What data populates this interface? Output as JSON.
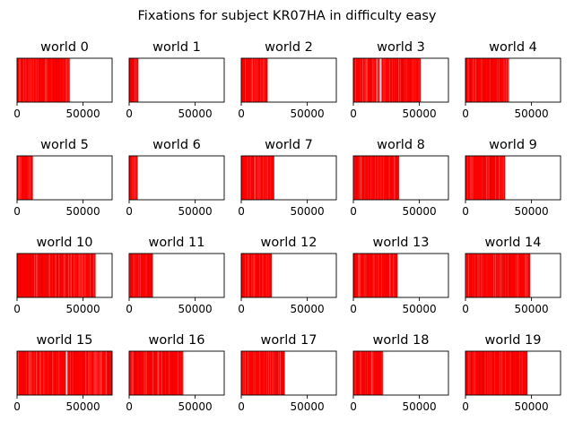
{
  "chart_data": {
    "type": "event-raster",
    "suptitle": "Fixations for subject KR07HA in difficulty easy",
    "xlim": [
      0,
      72000
    ],
    "xticks": [
      0,
      50000
    ],
    "xtick_labels": [
      "0",
      "50000"
    ],
    "yticks": [],
    "bar_color": "#ff0000",
    "grid": false,
    "panels": [
      {
        "title": "world 0",
        "extent": [
          0,
          40000
        ],
        "gaps": []
      },
      {
        "title": "world 1",
        "extent": [
          0,
          7000
        ],
        "gaps": []
      },
      {
        "title": "world 2",
        "extent": [
          0,
          20000
        ],
        "gaps": []
      },
      {
        "title": "world 3",
        "extent": [
          0,
          51000
        ],
        "gaps": [
          [
            20000,
            21300
          ],
          [
            17500,
            18000
          ]
        ]
      },
      {
        "title": "world 4",
        "extent": [
          0,
          33000
        ],
        "gaps": []
      },
      {
        "title": "world 5",
        "extent": [
          0,
          12000
        ],
        "gaps": []
      },
      {
        "title": "world 6",
        "extent": [
          0,
          6500
        ],
        "gaps": []
      },
      {
        "title": "world 7",
        "extent": [
          0,
          25000
        ],
        "gaps": []
      },
      {
        "title": "world 8",
        "extent": [
          0,
          34500
        ],
        "gaps": []
      },
      {
        "title": "world 9",
        "extent": [
          0,
          30000
        ],
        "gaps": []
      },
      {
        "title": "world 10",
        "extent": [
          0,
          59500
        ],
        "gaps": []
      },
      {
        "title": "world 11",
        "extent": [
          0,
          18000
        ],
        "gaps": []
      },
      {
        "title": "world 12",
        "extent": [
          0,
          23000
        ],
        "gaps": []
      },
      {
        "title": "world 13",
        "extent": [
          0,
          33500
        ],
        "gaps": []
      },
      {
        "title": "world 14",
        "extent": [
          0,
          49000
        ],
        "gaps": []
      },
      {
        "title": "world 15",
        "extent": [
          0,
          72000
        ],
        "gaps": [
          [
            37000,
            38200
          ]
        ]
      },
      {
        "title": "world 16",
        "extent": [
          0,
          41000
        ],
        "gaps": []
      },
      {
        "title": "world 17",
        "extent": [
          0,
          33000
        ],
        "gaps": []
      },
      {
        "title": "world 18",
        "extent": [
          0,
          22500
        ],
        "gaps": []
      },
      {
        "title": "world 19",
        "extent": [
          0,
          47000
        ],
        "gaps": []
      }
    ]
  }
}
